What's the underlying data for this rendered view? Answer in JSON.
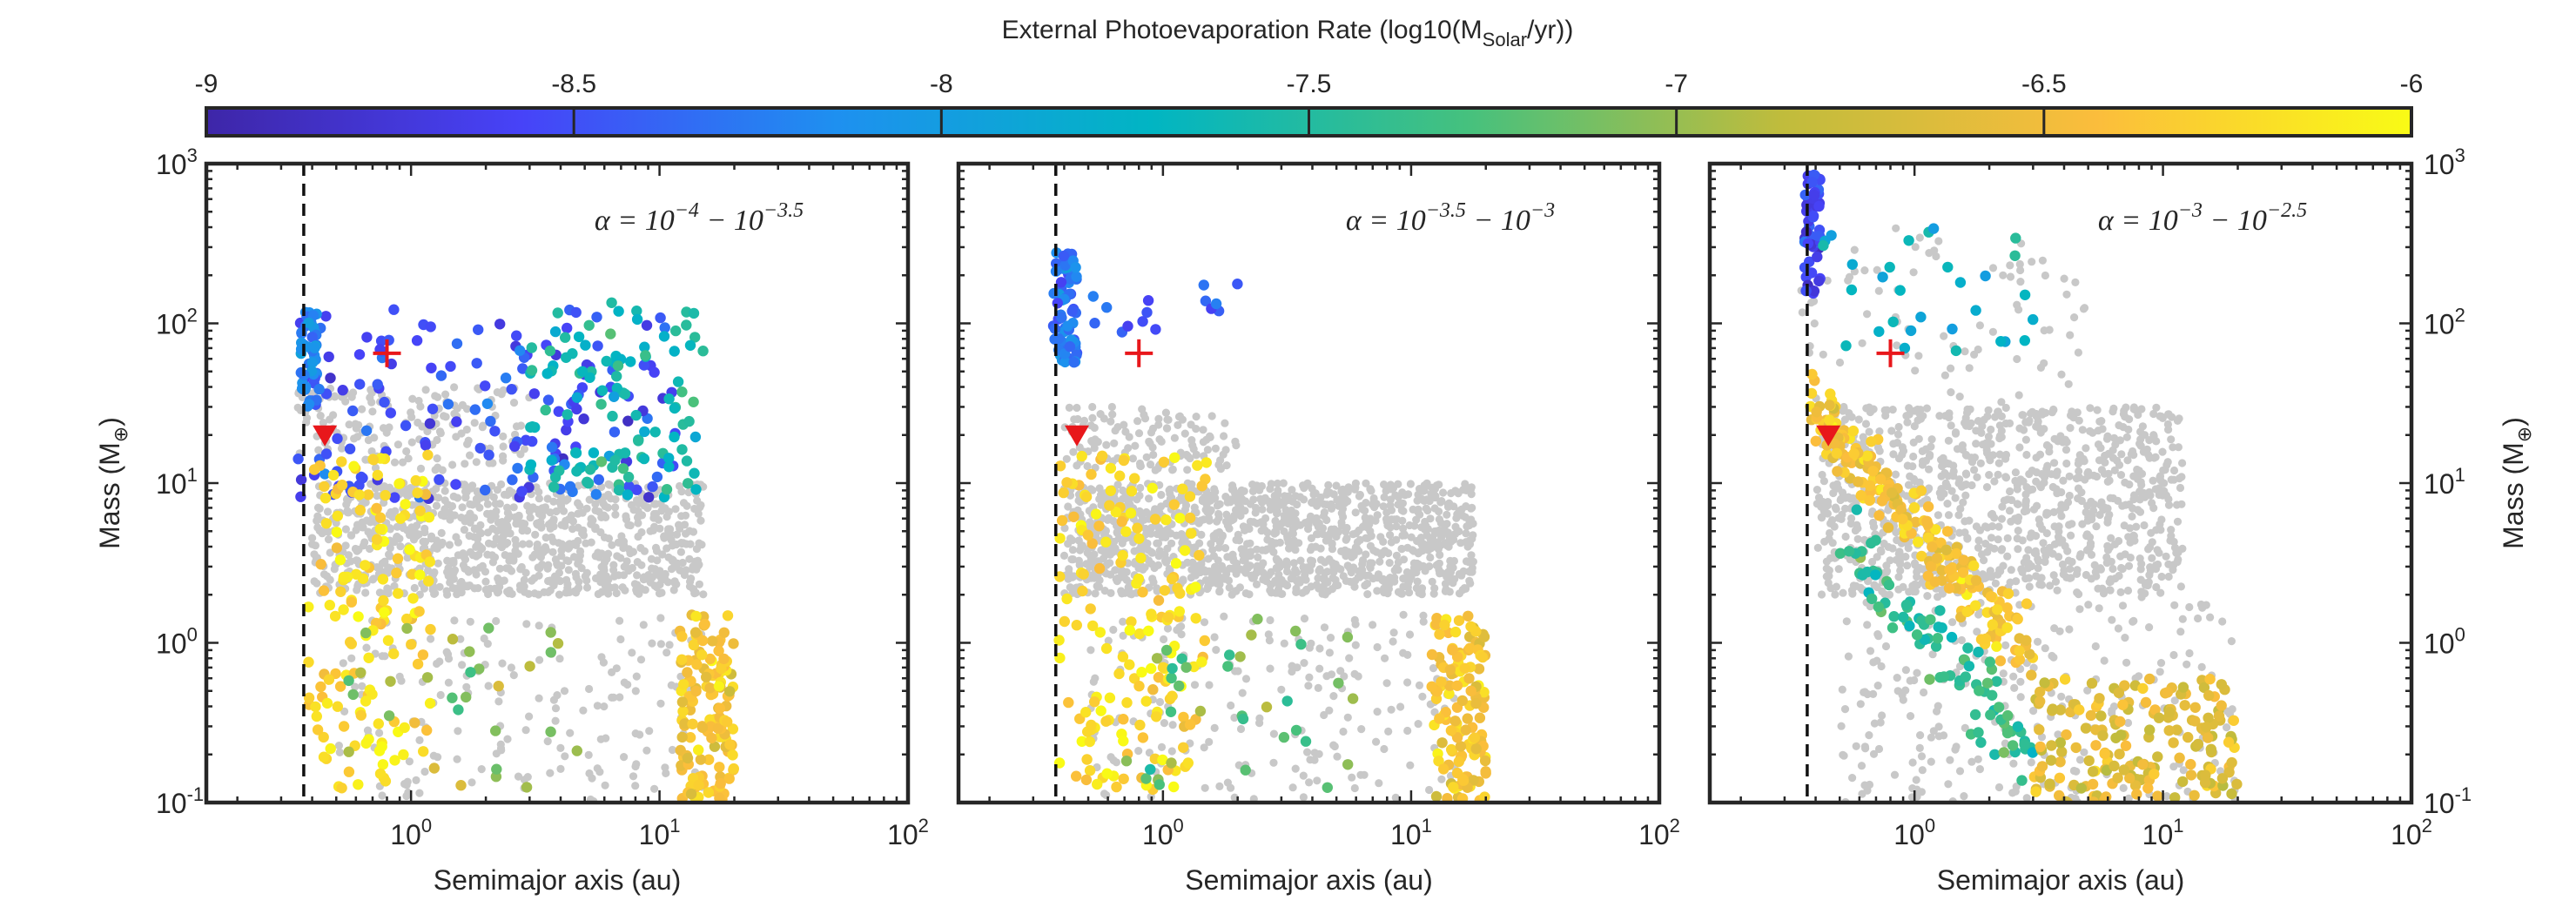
{
  "figure": {
    "colorbar": {
      "label_main": "External Photoevaporation Rate (log10(M",
      "label_sub": "Solar",
      "label_tail": "/yr))",
      "tick_labels": [
        "-9",
        "-8.5",
        "-8",
        "-7.5",
        "-7",
        "-6.5",
        "-6"
      ],
      "colors": [
        "#3e26a8",
        "#4743f8",
        "#1e90f0",
        "#01b5c3",
        "#45c17e",
        "#c0bc3c",
        "#fbbd3c",
        "#f9fb15"
      ]
    },
    "colors": {
      "background_points": "#c8c8c8",
      "reference_marker": "#e8171b",
      "axes": "#262626"
    }
  },
  "chart_data": [
    {
      "type": "scatter",
      "panel": "left",
      "annotation": "α = 10⁻⁴ − 10⁻³·⁵",
      "ann_base1": "α = 10",
      "ann_exp1": "−4",
      "ann_mid": " − 10",
      "ann_exp2": "−3.5",
      "xlabel": "Semimajor axis (au)",
      "ylabel": "Mass (M⊕)",
      "ylabel_main": "Mass (M",
      "ylabel_sub": "⊕",
      "ylabel_tail": ")",
      "xscale": "log",
      "yscale": "log",
      "xlim": [
        0.15,
        100
      ],
      "ylim": [
        0.1,
        1000
      ],
      "x_ticks": [
        1,
        10,
        100
      ],
      "x_tick_base": "10",
      "x_tick_exps": [
        "0",
        "1",
        "2"
      ],
      "y_ticks": [
        0.1,
        1,
        10,
        100,
        1000
      ],
      "y_tick_base": "10",
      "y_tick_exps": [
        "-1",
        "0",
        "1",
        "2",
        "3"
      ],
      "dashed_line_x": 0.37,
      "cross_marker": {
        "x": 0.8,
        "y": 65
      },
      "triangle_marker": {
        "x": 0.45,
        "y": 20
      },
      "clusters": [
        {
          "name": "gray-band",
          "color_value": "gray",
          "x": [
            0.4,
            15
          ],
          "y": [
            2,
            10
          ],
          "n": 900
        },
        {
          "name": "gray-lower",
          "color_value": "gray",
          "x": [
            0.5,
            15
          ],
          "y": [
            0.1,
            1.5
          ],
          "n": 170
        },
        {
          "name": "gray-upper",
          "color_value": "gray",
          "x": [
            0.35,
            3
          ],
          "y": [
            12,
            40
          ],
          "n": 160
        },
        {
          "name": "blue-cloud",
          "color_value": -8.5,
          "x": [
            0.35,
            12
          ],
          "y": [
            8,
            130
          ],
          "n": 160
        },
        {
          "name": "teal-cloud",
          "color_value": -7.6,
          "x": [
            3,
            15
          ],
          "y": [
            8,
            140
          ],
          "n": 110
        },
        {
          "name": "left-column",
          "color_value": -8.2,
          "x": [
            0.36,
            0.42
          ],
          "y": [
            30,
            120
          ],
          "n": 45
        },
        {
          "name": "yellow-inner",
          "color_value": -6.2,
          "x": [
            0.38,
            1.2
          ],
          "y": [
            0.12,
            15
          ],
          "n": 150
        },
        {
          "name": "orange-outer",
          "color_value": -6.4,
          "x": [
            12,
            20
          ],
          "y": [
            0.1,
            1.5
          ],
          "n": 140
        },
        {
          "name": "mixed-lower",
          "color_value": -7.0,
          "x": [
            0.5,
            5
          ],
          "y": [
            0.12,
            1.5
          ],
          "n": 30
        }
      ]
    },
    {
      "type": "scatter",
      "panel": "middle",
      "annotation": "α = 10⁻³·⁵ − 10⁻³",
      "ann_base1": "α = 10",
      "ann_exp1": "−3.5",
      "ann_mid": " − 10",
      "ann_exp2": "−3",
      "xlabel": "Semimajor axis (au)",
      "xscale": "log",
      "yscale": "log",
      "xlim": [
        0.15,
        100
      ],
      "ylim": [
        0.1,
        1000
      ],
      "x_ticks": [
        1,
        10,
        100
      ],
      "x_tick_base": "10",
      "x_tick_exps": [
        "0",
        "1",
        "2"
      ],
      "dashed_line_x": 0.37,
      "cross_marker": {
        "x": 0.8,
        "y": 65
      },
      "triangle_marker": {
        "x": 0.45,
        "y": 20
      },
      "clusters": [
        {
          "name": "gray-band",
          "color_value": "gray",
          "x": [
            0.4,
            18
          ],
          "y": [
            2,
            10
          ],
          "n": 1200
        },
        {
          "name": "gray-lower",
          "color_value": "gray",
          "x": [
            0.5,
            15
          ],
          "y": [
            0.1,
            1.5
          ],
          "n": 200
        },
        {
          "name": "gray-upper",
          "color_value": "gray",
          "x": [
            0.4,
            2
          ],
          "y": [
            12,
            30
          ],
          "n": 120
        },
        {
          "name": "blue-column",
          "color_value": -8.3,
          "x": [
            0.36,
            0.45
          ],
          "y": [
            55,
            280
          ],
          "n": 70
        },
        {
          "name": "blue-scatter",
          "color_value": -8.4,
          "x": [
            0.45,
            2
          ],
          "y": [
            70,
            180
          ],
          "n": 15
        },
        {
          "name": "yellow-inner",
          "color_value": -6.2,
          "x": [
            0.38,
            1.5
          ],
          "y": [
            0.12,
            15
          ],
          "n": 170
        },
        {
          "name": "orange-outer",
          "color_value": -6.4,
          "x": [
            12,
            20
          ],
          "y": [
            0.1,
            1.5
          ],
          "n": 130
        },
        {
          "name": "mixed-lower",
          "color_value": -7.2,
          "x": [
            0.6,
            6
          ],
          "y": [
            0.12,
            1.5
          ],
          "n": 35
        }
      ]
    },
    {
      "type": "scatter",
      "panel": "right",
      "annotation": "α = 10⁻³ − 10⁻²·⁵",
      "ann_base1": "α = 10",
      "ann_exp1": "−3",
      "ann_mid": " − 10",
      "ann_exp2": "−2.5",
      "xlabel": "Semimajor axis (au)",
      "ylabel": "Mass (M⊕)",
      "ylabel_main": "Mass (M",
      "ylabel_sub": "⊕",
      "ylabel_tail": ")",
      "xscale": "log",
      "yscale": "log",
      "xlim": [
        0.15,
        100
      ],
      "ylim": [
        0.1,
        1000
      ],
      "x_ticks": [
        1,
        10,
        100
      ],
      "x_tick_base": "10",
      "x_tick_exps": [
        "0",
        "1",
        "2"
      ],
      "y_ticks": [
        0.1,
        1,
        10,
        100,
        1000
      ],
      "y_tick_base": "10",
      "y_tick_exps": [
        "-1",
        "0",
        "1",
        "2",
        "3"
      ],
      "dashed_line_x": 0.37,
      "cross_marker": {
        "x": 0.8,
        "y": 65
      },
      "triangle_marker": {
        "x": 0.45,
        "y": 20
      },
      "clusters": [
        {
          "name": "gray-band",
          "color_value": "gray",
          "x": [
            0.4,
            12
          ],
          "y": [
            2,
            30
          ],
          "n": 1000
        },
        {
          "name": "gray-lower",
          "color_value": "gray",
          "x": [
            0.5,
            20
          ],
          "y": [
            0.1,
            2
          ],
          "n": 250
        },
        {
          "name": "gray-upper",
          "color_value": "gray",
          "x": [
            0.35,
            5
          ],
          "y": [
            30,
            400
          ],
          "n": 80
        },
        {
          "name": "blue-column",
          "color_value": -8.6,
          "x": [
            0.36,
            0.42
          ],
          "y": [
            150,
            900
          ],
          "n": 55
        },
        {
          "name": "mixed-upper",
          "color_value": -7.8,
          "x": [
            0.4,
            3
          ],
          "y": [
            60,
            400
          ],
          "n": 30
        },
        {
          "name": "yellow-diagonal",
          "color_value": -6.4,
          "x": [
            0.38,
            3
          ],
          "y": [
            0.8,
            30
          ],
          "n": 220
        },
        {
          "name": "mixed-diagonal",
          "color_value": -7.4,
          "x": [
            0.5,
            3
          ],
          "y": [
            0.2,
            5
          ],
          "n": 90
        },
        {
          "name": "outer-tail",
          "color_value": -6.6,
          "x": [
            3,
            20
          ],
          "y": [
            0.1,
            0.6
          ],
          "n": 180
        }
      ]
    }
  ]
}
